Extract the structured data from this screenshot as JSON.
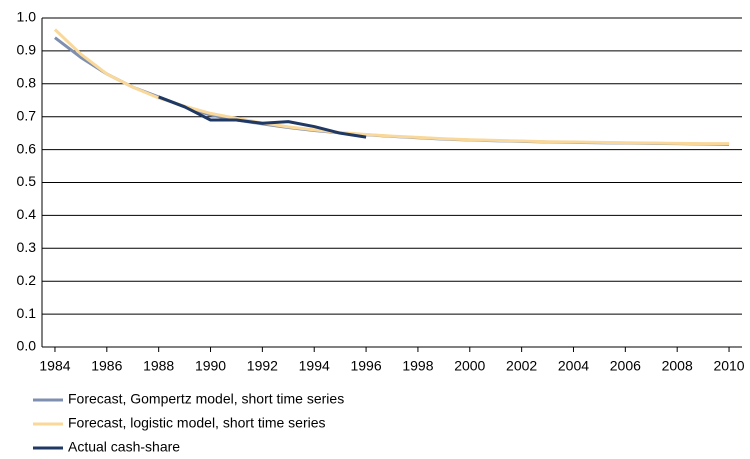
{
  "chart_data": {
    "type": "line",
    "x": [
      1984,
      1985,
      1986,
      1987,
      1988,
      1989,
      1990,
      1991,
      1992,
      1993,
      1994,
      1995,
      1996,
      1997,
      1998,
      1999,
      2000,
      2001,
      2002,
      2003,
      2004,
      2005,
      2006,
      2007,
      2008,
      2009,
      2010
    ],
    "series": [
      {
        "name": "Forecast, Gompertz model, short time series",
        "color": "#7f8fb0",
        "values": [
          0.94,
          0.88,
          0.83,
          0.79,
          0.76,
          0.73,
          0.705,
          0.69,
          0.678,
          0.667,
          0.658,
          0.651,
          0.645,
          0.64,
          0.636,
          0.632,
          0.629,
          0.627,
          0.625,
          0.623,
          0.622,
          0.621,
          0.62,
          0.619,
          0.618,
          0.617,
          0.616
        ]
      },
      {
        "name": "Forecast, logistic model, short time series",
        "color": "#f9d89a",
        "values": [
          0.965,
          0.89,
          0.83,
          0.79,
          0.757,
          0.732,
          0.71,
          0.695,
          0.681,
          0.669,
          0.66,
          0.652,
          0.646,
          0.641,
          0.637,
          0.633,
          0.63,
          0.628,
          0.626,
          0.624,
          0.623,
          0.622,
          0.621,
          0.62,
          0.619,
          0.618,
          0.618
        ]
      },
      {
        "name": "Actual cash-share",
        "color": "#1f3864",
        "values": [
          null,
          null,
          null,
          null,
          0.76,
          0.73,
          0.69,
          0.69,
          0.68,
          0.685,
          0.67,
          0.65,
          0.638,
          null,
          null,
          null,
          null,
          null,
          null,
          null,
          null,
          null,
          null,
          null,
          null,
          null,
          null
        ]
      }
    ],
    "xlim": [
      1983.5,
      2010.5
    ],
    "xticks": [
      1984,
      1986,
      1988,
      1990,
      1992,
      1994,
      1996,
      1998,
      2000,
      2002,
      2004,
      2006,
      2008,
      2010
    ],
    "ylim": [
      0,
      1
    ],
    "yticks": [
      {
        "value": 0,
        "label": "0.0"
      },
      0.1,
      0.2,
      0.3,
      0.4,
      0.5,
      0.6,
      0.7,
      0.8,
      0.9,
      {
        "value": 1,
        "label": "1.0"
      }
    ],
    "grid": true,
    "legend": "bottom-left"
  }
}
